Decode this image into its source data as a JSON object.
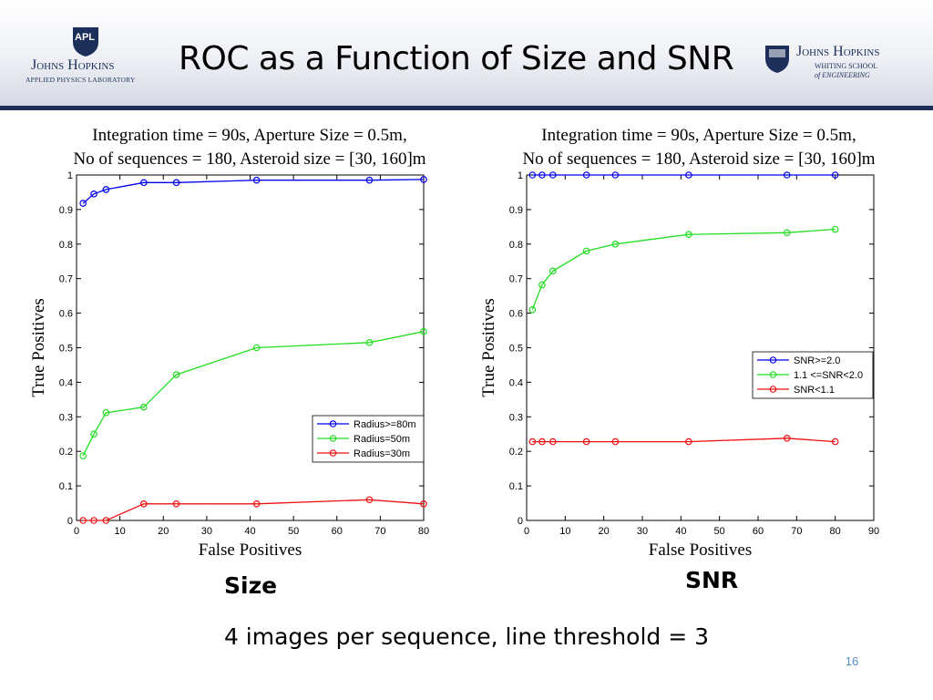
{
  "slide": {
    "title": "ROC as a Function of Size and SNR",
    "caption_left": "Size",
    "caption_right": "SNR",
    "footer_note": "4 images per sequence, line threshold = 3",
    "page_number": "16"
  },
  "logos": {
    "left": {
      "badge": "APL",
      "line1": "Johns Hopkins",
      "line2": "APPLIED PHYSICS LABORATORY"
    },
    "right": {
      "line1": "Johns Hopkins",
      "line2": "WHITING SCHOOL",
      "line3": "of ENGINEERING"
    }
  },
  "colors": {
    "blue": "#0000ee",
    "green": "#22dd22",
    "red": "#ee1111",
    "header_rule": "#1c2e5a"
  },
  "chart_data": [
    {
      "type": "line",
      "title": "Integration time = 90s, Aperture Size = 0.5m,",
      "subtitle": "No of sequences = 180, Asteroid size = [30, 160]m",
      "xlabel": "False Positives",
      "ylabel": "True Positives",
      "xlim": [
        0,
        80
      ],
      "ylim": [
        0,
        1
      ],
      "xticks": [
        0,
        10,
        20,
        30,
        40,
        50,
        60,
        70,
        80
      ],
      "yticks": [
        0,
        0.1,
        0.2,
        0.3,
        0.4,
        0.5,
        0.6,
        0.7,
        0.8,
        0.9,
        1
      ],
      "grid": false,
      "legend": "lower-right",
      "series": [
        {
          "name": "Radius>=80m",
          "color": "#0000ee",
          "x": [
            1.5,
            4,
            6.8,
            15.5,
            23,
            41.5,
            67.5,
            80
          ],
          "y": [
            0.918,
            0.945,
            0.958,
            0.978,
            0.978,
            0.985,
            0.985,
            0.987
          ]
        },
        {
          "name": "Radius=50m",
          "color": "#22dd22",
          "x": [
            1.5,
            4,
            6.8,
            15.5,
            23,
            41.5,
            67.5,
            80
          ],
          "y": [
            0.187,
            0.25,
            0.312,
            0.328,
            0.422,
            0.5,
            0.515,
            0.547
          ]
        },
        {
          "name": "Radius=30m",
          "color": "#ee1111",
          "x": [
            1.5,
            4,
            6.8,
            15.5,
            23,
            41.5,
            67.5,
            80
          ],
          "y": [
            0,
            0,
            0,
            0.048,
            0.048,
            0.048,
            0.06,
            0.048
          ]
        }
      ]
    },
    {
      "type": "line",
      "title": "Integration time = 90s, Aperture Size = 0.5m,",
      "subtitle": "No of sequences = 180, Asteroid size = [30, 160]m",
      "xlabel": "False Positives",
      "ylabel": "True Positives",
      "xlim": [
        0,
        90
      ],
      "ylim": [
        0,
        1
      ],
      "xticks": [
        0,
        10,
        20,
        30,
        40,
        50,
        60,
        70,
        80,
        90
      ],
      "yticks": [
        0,
        0.1,
        0.2,
        0.3,
        0.4,
        0.5,
        0.6,
        0.7,
        0.8,
        0.9,
        1
      ],
      "grid": false,
      "legend": "right",
      "series": [
        {
          "name": "SNR>=2.0",
          "color": "#0000ee",
          "x": [
            1.5,
            4,
            6.8,
            15.5,
            23,
            42,
            67.5,
            80
          ],
          "y": [
            1,
            1,
            1,
            1,
            1,
            1,
            1,
            1
          ]
        },
        {
          "name": "1.1 <=SNR<2.0",
          "color": "#22dd22",
          "x": [
            1.5,
            4,
            6.8,
            15.5,
            23,
            42,
            67.5,
            80
          ],
          "y": [
            0.61,
            0.682,
            0.722,
            0.78,
            0.8,
            0.828,
            0.833,
            0.843
          ]
        },
        {
          "name": "SNR<1.1",
          "color": "#ee1111",
          "x": [
            1.5,
            4,
            6.8,
            15.5,
            23,
            42,
            67.5,
            80
          ],
          "y": [
            0.228,
            0.228,
            0.228,
            0.228,
            0.228,
            0.228,
            0.238,
            0.228
          ]
        }
      ]
    }
  ]
}
